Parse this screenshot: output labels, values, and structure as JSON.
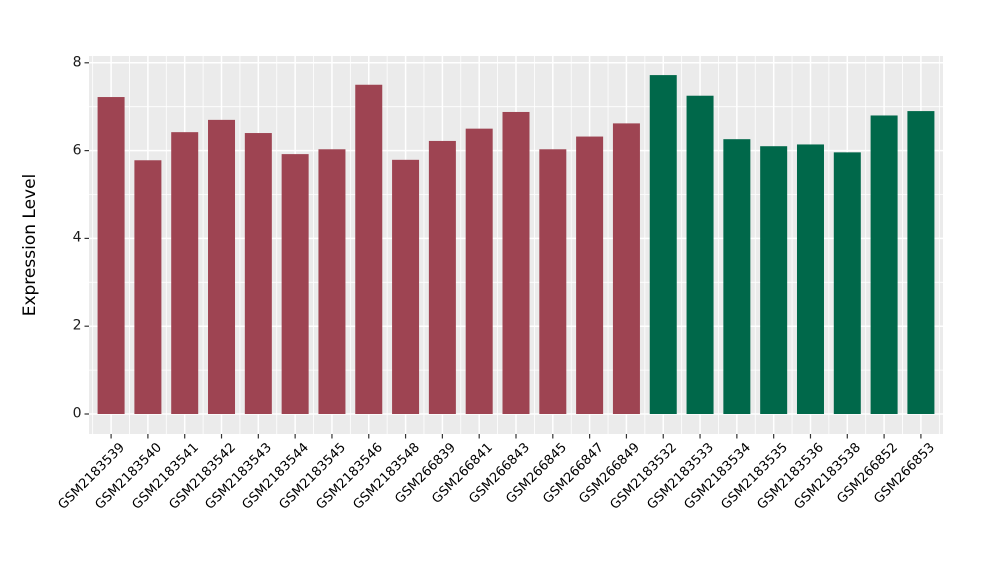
{
  "chart_data": {
    "type": "bar",
    "title": "",
    "xlabel": "",
    "ylabel": "Expression Level",
    "yticks": [
      0,
      2,
      4,
      6,
      8
    ],
    "ylim": [
      -0.45,
      8.15
    ],
    "grid": "ggplot-style: white major and minor gridlines (horizontal and vertical) on light gray panel",
    "legend_position": "none",
    "panel_bg": "#EBEBEB",
    "grid_color": "#FFFFFF",
    "tick_mark_color": "#333333",
    "text_color": "#000000",
    "group_colors": {
      "maroon": "#9E4452",
      "green": "#00684A"
    },
    "bars": [
      {
        "label": "GSM2183539",
        "value": 7.22,
        "group": "maroon"
      },
      {
        "label": "GSM2183540",
        "value": 5.78,
        "group": "maroon"
      },
      {
        "label": "GSM2183541",
        "value": 6.42,
        "group": "maroon"
      },
      {
        "label": "GSM2183542",
        "value": 6.7,
        "group": "maroon"
      },
      {
        "label": "GSM2183543",
        "value": 6.4,
        "group": "maroon"
      },
      {
        "label": "GSM2183544",
        "value": 5.92,
        "group": "maroon"
      },
      {
        "label": "GSM2183545",
        "value": 6.03,
        "group": "maroon"
      },
      {
        "label": "GSM2183546",
        "value": 7.5,
        "group": "maroon"
      },
      {
        "label": "GSM2183548",
        "value": 5.79,
        "group": "maroon"
      },
      {
        "label": "GSM266839",
        "value": 6.22,
        "group": "maroon"
      },
      {
        "label": "GSM266841",
        "value": 6.5,
        "group": "maroon"
      },
      {
        "label": "GSM266843",
        "value": 6.88,
        "group": "maroon"
      },
      {
        "label": "GSM266845",
        "value": 6.03,
        "group": "maroon"
      },
      {
        "label": "GSM266847",
        "value": 6.32,
        "group": "maroon"
      },
      {
        "label": "GSM266849",
        "value": 6.62,
        "group": "maroon"
      },
      {
        "label": "GSM2183532",
        "value": 7.72,
        "group": "green"
      },
      {
        "label": "GSM2183533",
        "value": 7.25,
        "group": "green"
      },
      {
        "label": "GSM2183534",
        "value": 6.26,
        "group": "green"
      },
      {
        "label": "GSM2183535",
        "value": 6.1,
        "group": "green"
      },
      {
        "label": "GSM2183536",
        "value": 6.14,
        "group": "green"
      },
      {
        "label": "GSM2183538",
        "value": 5.96,
        "group": "green"
      },
      {
        "label": "GSM266852",
        "value": 6.8,
        "group": "green"
      },
      {
        "label": "GSM266853",
        "value": 6.9,
        "group": "green"
      }
    ]
  }
}
